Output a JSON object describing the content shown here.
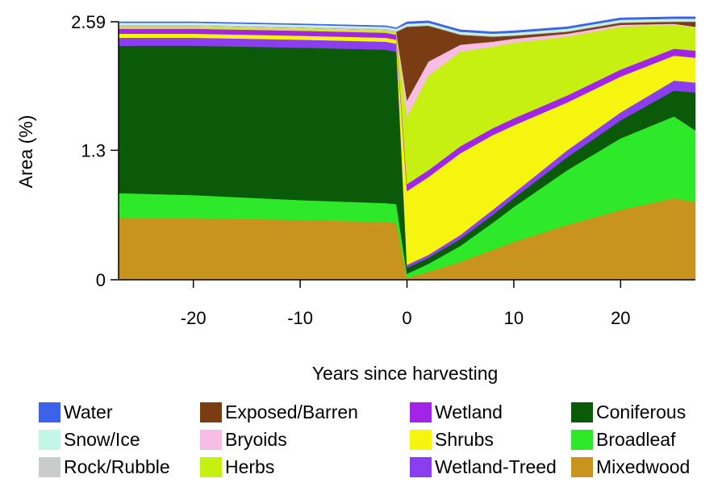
{
  "chart_data": {
    "type": "area",
    "stacked": true,
    "title": "",
    "xlabel": "Years since harvesting",
    "ylabel": "Area (%)",
    "xlim": [
      -27,
      27
    ],
    "ylim": [
      0,
      2.59
    ],
    "x_ticks": [
      -20,
      -10,
      0,
      10,
      20
    ],
    "y_ticks": [
      0,
      1.3,
      2.59
    ],
    "y_tick_labels": [
      "0",
      "1.3",
      "2.59"
    ],
    "grid": false,
    "legend_position": "bottom",
    "x": [
      -27,
      -20,
      -10,
      -2,
      -1,
      0,
      2,
      5,
      8,
      10,
      15,
      20,
      25,
      27
    ],
    "series": [
      {
        "name": "Mixedwood",
        "color": "#c8941d",
        "values": [
          0.62,
          0.62,
          0.6,
          0.58,
          0.57,
          0.02,
          0.08,
          0.18,
          0.3,
          0.38,
          0.55,
          0.7,
          0.82,
          0.78
        ]
      },
      {
        "name": "Broadleaf",
        "color": "#2ee82a",
        "values": [
          0.25,
          0.23,
          0.2,
          0.19,
          0.19,
          0.04,
          0.08,
          0.16,
          0.27,
          0.35,
          0.55,
          0.72,
          0.82,
          0.72
        ]
      },
      {
        "name": "Coniferous",
        "color": "#0b5a0a",
        "values": [
          1.48,
          1.5,
          1.53,
          1.54,
          1.53,
          0.06,
          0.06,
          0.07,
          0.08,
          0.09,
          0.13,
          0.18,
          0.26,
          0.38
        ]
      },
      {
        "name": "Wetland-Treed",
        "color": "#8a3ef0",
        "values": [
          0.08,
          0.08,
          0.08,
          0.08,
          0.08,
          0.03,
          0.03,
          0.04,
          0.05,
          0.05,
          0.07,
          0.08,
          0.1,
          0.1
        ]
      },
      {
        "name": "Shrubs",
        "color": "#f5f510",
        "values": [
          0.04,
          0.04,
          0.04,
          0.04,
          0.04,
          0.74,
          0.78,
          0.82,
          0.75,
          0.68,
          0.48,
          0.36,
          0.25,
          0.25
        ]
      },
      {
        "name": "Wetland",
        "color": "#a224e8",
        "values": [
          0.05,
          0.05,
          0.05,
          0.05,
          0.05,
          0.07,
          0.07,
          0.07,
          0.07,
          0.07,
          0.07,
          0.07,
          0.07,
          0.07
        ]
      },
      {
        "name": "Herbs",
        "color": "#c6ef12",
        "values": [
          0.02,
          0.02,
          0.02,
          0.02,
          0.02,
          0.68,
          0.95,
          0.95,
          0.82,
          0.76,
          0.59,
          0.43,
          0.24,
          0.23
        ]
      },
      {
        "name": "Bryoids",
        "color": "#f7bde4",
        "values": [
          0.01,
          0.01,
          0.01,
          0.01,
          0.01,
          0.16,
          0.14,
          0.07,
          0.05,
          0.04,
          0.03,
          0.02,
          0.01,
          0.01
        ]
      },
      {
        "name": "Exposed/Barren",
        "color": "#7a3c12",
        "values": [
          0.0,
          0.0,
          0.0,
          0.0,
          0.0,
          0.74,
          0.36,
          0.1,
          0.05,
          0.03,
          0.02,
          0.02,
          0.02,
          0.05
        ]
      },
      {
        "name": "Rock/Rubble",
        "color": "#c8cdcc",
        "values": [
          0.01,
          0.01,
          0.01,
          0.01,
          0.01,
          0.01,
          0.01,
          0.01,
          0.01,
          0.01,
          0.01,
          0.01,
          0.01,
          0.01
        ]
      },
      {
        "name": "Snow/Ice",
        "color": "#c4f6e7",
        "values": [
          0.02,
          0.02,
          0.02,
          0.02,
          0.02,
          0.02,
          0.02,
          0.02,
          0.02,
          0.02,
          0.02,
          0.02,
          0.02,
          0.02
        ]
      },
      {
        "name": "Water",
        "color": "#3d62e8",
        "values": [
          0.01,
          0.01,
          0.01,
          0.01,
          0.01,
          0.02,
          0.02,
          0.02,
          0.02,
          0.02,
          0.02,
          0.02,
          0.02,
          0.02
        ]
      }
    ],
    "legend": [
      {
        "name": "Water",
        "color": "#3d62e8"
      },
      {
        "name": "Snow/Ice",
        "color": "#c4f6e7"
      },
      {
        "name": "Rock/Rubble",
        "color": "#c8cdcc"
      },
      {
        "name": "Exposed/Barren",
        "color": "#7a3c12"
      },
      {
        "name": "Bryoids",
        "color": "#f7bde4"
      },
      {
        "name": "Herbs",
        "color": "#c6ef12"
      },
      {
        "name": "Wetland",
        "color": "#a224e8"
      },
      {
        "name": "Shrubs",
        "color": "#f5f510"
      },
      {
        "name": "Wetland-Treed",
        "color": "#8a3ef0"
      },
      {
        "name": "Coniferous",
        "color": "#0b5a0a"
      },
      {
        "name": "Broadleaf",
        "color": "#2ee82a"
      },
      {
        "name": "Mixedwood",
        "color": "#c8941d"
      }
    ]
  }
}
